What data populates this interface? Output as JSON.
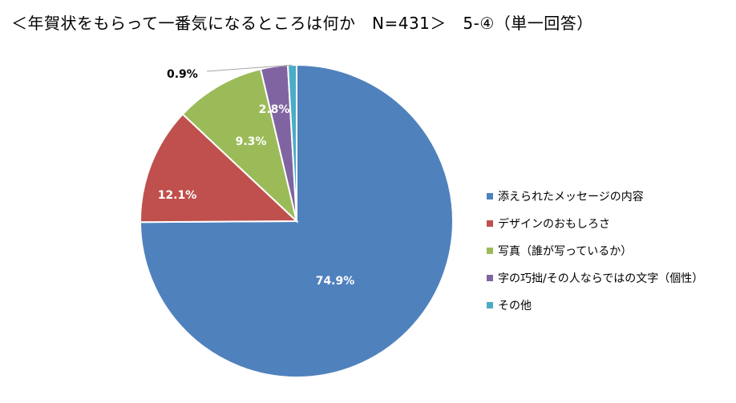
{
  "title": "＜年賀状をもらって一番気になるところは何か　N=431＞　5-④（単一回答）",
  "chart_data": {
    "type": "pie",
    "title": "＜年賀状をもらって一番気になるところは何か　N=431＞　5-④（単一回答）",
    "slices": [
      {
        "label": "添えられたメッセージの内容",
        "value": 74.9,
        "value_label": "74.9%",
        "color": "#4F81BD"
      },
      {
        "label": "デザインのおもしろさ",
        "value": 12.1,
        "value_label": "12.1%",
        "color": "#C0504D"
      },
      {
        "label": "写真（誰が写っているか）",
        "value": 9.3,
        "value_label": "9.3%",
        "color": "#9BBB59"
      },
      {
        "label": "字の巧拙/その人ならではの文字（個性）",
        "value": 2.8,
        "value_label": "2.8%",
        "color": "#8064A2"
      },
      {
        "label": "その他",
        "value": 0.9,
        "value_label": "0.9%",
        "color": "#4BACC6"
      }
    ],
    "legend_position": "right"
  }
}
